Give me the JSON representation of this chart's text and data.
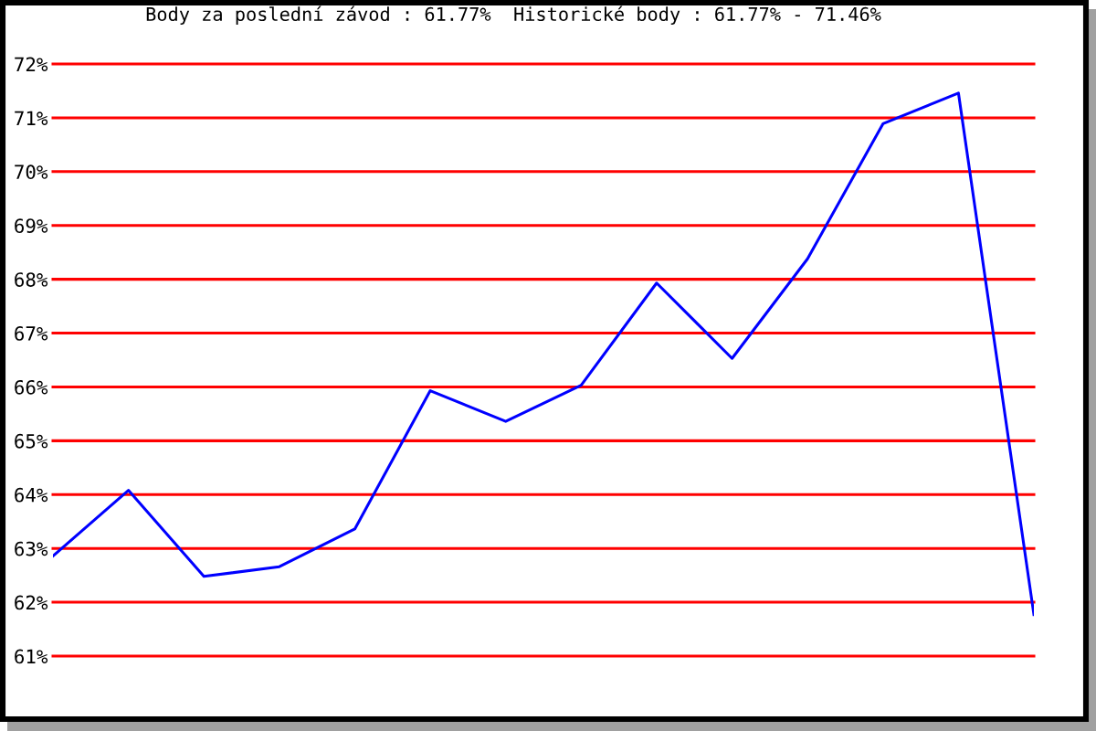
{
  "chart_data": {
    "type": "line",
    "title": "Body za poslední závod : 61.77%  Historické body : 61.77% - 71.46%",
    "categories": [
      null,
      null,
      null,
      null,
      null,
      null,
      null,
      null,
      null,
      null,
      null,
      null,
      null,
      null
    ],
    "series": [
      {
        "color": "#0000ff",
        "values": [
          62.86,
          64.08,
          62.48,
          62.66,
          63.36,
          65.93,
          65.36,
          66.03,
          67.93,
          66.53,
          68.38,
          70.89,
          71.46,
          61.77
        ]
      }
    ],
    "ylim": [
      61,
      72
    ],
    "yticks": [
      {
        "value": 61,
        "label": "61%"
      },
      {
        "value": 62,
        "label": "62%"
      },
      {
        "value": 63,
        "label": "63%"
      },
      {
        "value": 64,
        "label": "64%"
      },
      {
        "value": 65,
        "label": "65%"
      },
      {
        "value": 66,
        "label": "66%"
      },
      {
        "value": 67,
        "label": "67%"
      },
      {
        "value": 68,
        "label": "68%"
      },
      {
        "value": 69,
        "label": "69%"
      },
      {
        "value": 70,
        "label": "70%"
      },
      {
        "value": 71,
        "label": "71%"
      },
      {
        "value": 72,
        "label": "72%"
      }
    ],
    "grid": "y",
    "tick_labels": "y",
    "line_style": "solid"
  }
}
